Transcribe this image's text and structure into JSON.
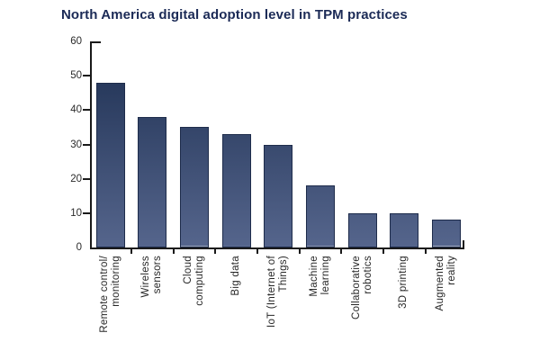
{
  "colors": {
    "title_navy": "#1B2A56",
    "axis": "#1a1a1a",
    "tick_label": "#2b2b2b",
    "bar_border": "#1E2C4B",
    "bar_gradient_top": "#1C2E50",
    "bar_gradient_bottom": "#55658C",
    "background": "#ffffff"
  },
  "chart_data": {
    "type": "bar",
    "title": "North America digital adoption level in TPM practices",
    "xlabel": "",
    "ylabel": "",
    "ylim": [
      0,
      60
    ],
    "yticks": [
      0,
      10,
      20,
      30,
      40,
      50,
      60
    ],
    "grid": false,
    "legend": "none",
    "categories": [
      "Remote control/ monitoring",
      "Wireless sensors",
      "Cloud computing",
      "Big data",
      "IoT (Internet of Things)",
      "Machine learning",
      "Collaborative robotics",
      "3D printing",
      "Augmented reality"
    ],
    "category_label_lines": [
      [
        "Remote control/",
        "monitoring"
      ],
      [
        "Wireless",
        "sensors"
      ],
      [
        "Cloud",
        "computing"
      ],
      [
        "Big data"
      ],
      [
        "IoT (Internet of",
        "Things)"
      ],
      [
        "Machine",
        "learning"
      ],
      [
        "Collaborative",
        "robotics"
      ],
      [
        "3D printing"
      ],
      [
        "Augmented",
        "reality"
      ]
    ],
    "values": [
      48,
      38,
      35,
      33,
      30,
      18,
      10,
      10,
      8
    ],
    "bar_style": "vertical gradient, dark navy at top to slate blue at bottom, gradient anchored to baseline"
  }
}
